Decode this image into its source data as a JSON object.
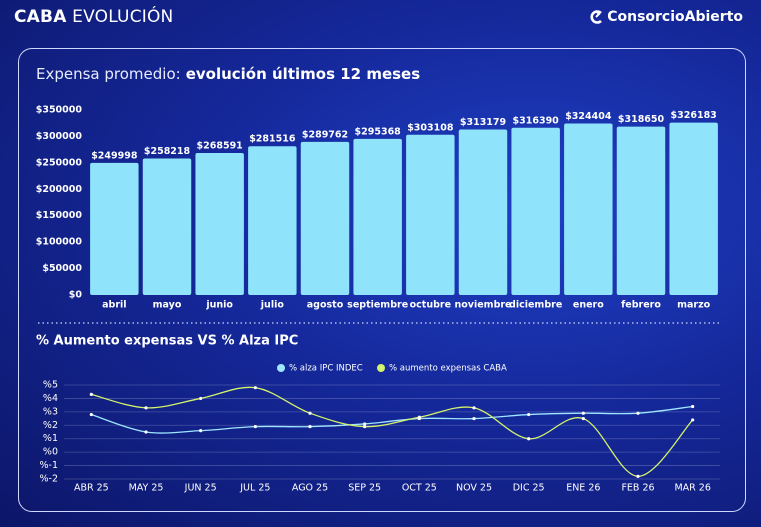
{
  "header": {
    "title_bold": "CABA",
    "title": "EVOLUCIÓN",
    "brand": "ConsorcioAbierto"
  },
  "chart_data": [
    {
      "type": "bar",
      "title_prefix": "Expensa promedio:",
      "title": "evolución últimos 12 meses",
      "categories": [
        "abril",
        "mayo",
        "junio",
        "julio",
        "agosto",
        "septiembre",
        "octubre",
        "noviembre",
        "diciembre",
        "enero",
        "febrero",
        "marzo"
      ],
      "values": [
        249998,
        258218,
        268591,
        281516,
        289762,
        295368,
        303108,
        313179,
        316390,
        324404,
        318650,
        326183
      ],
      "value_labels": [
        "$249998",
        "$258218",
        "$268591",
        "$281516",
        "$289762",
        "$295368",
        "$303108",
        "$313179",
        "$316390",
        "$324404",
        "$318650",
        "$326183"
      ],
      "color": "#8fe4fb",
      "ylim": [
        0,
        350000
      ],
      "yticks": [
        {
          "value": 0,
          "label": "$0"
        },
        {
          "value": 50000,
          "label": "$50000"
        },
        {
          "value": 100000,
          "label": "$100000"
        },
        {
          "value": 150000,
          "label": "$150000"
        },
        {
          "value": 200000,
          "label": "$200000"
        },
        {
          "value": 250000,
          "label": "$250000"
        },
        {
          "value": 300000,
          "label": "$300000"
        },
        {
          "value": 350000,
          "label": "$350000"
        }
      ],
      "grid": false
    },
    {
      "type": "line",
      "title": "% Aumento expensas VS % Alza IPC",
      "categories": [
        "ABR 25",
        "MAY 25",
        "JUN 25",
        "JUL 25",
        "AGO 25",
        "SEP 25",
        "OCT 25",
        "NOV 25",
        "DIC 25",
        "ENE 26",
        "FEB 26",
        "MAR 26"
      ],
      "series": [
        {
          "name": "% alza IPC INDEC",
          "color": "#9fe6ff",
          "values": [
            2.8,
            1.5,
            1.6,
            1.9,
            1.9,
            2.1,
            2.5,
            2.5,
            2.8,
            2.9,
            2.9,
            3.4
          ]
        },
        {
          "name": "% aumento expensas CABA",
          "color": "#d2f36a",
          "values": [
            4.3,
            3.3,
            4.0,
            4.8,
            2.9,
            1.9,
            2.6,
            3.3,
            1.0,
            2.5,
            -1.8,
            2.4
          ]
        }
      ],
      "ylim": [
        -2,
        5
      ],
      "yticks": [
        {
          "value": 5,
          "label": "%5"
        },
        {
          "value": 4,
          "label": "%4"
        },
        {
          "value": 3,
          "label": "%3"
        },
        {
          "value": 2,
          "label": "%2"
        },
        {
          "value": 1,
          "label": "%1"
        },
        {
          "value": 0,
          "label": "%0"
        },
        {
          "value": -1,
          "label": "%-1"
        },
        {
          "value": -2,
          "label": "%-2"
        }
      ],
      "grid": true,
      "legend": "top"
    }
  ]
}
